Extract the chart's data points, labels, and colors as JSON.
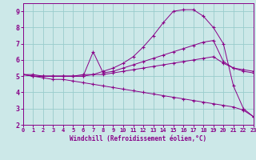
{
  "xlabel": "Windchill (Refroidissement éolien,°C)",
  "xlim": [
    0,
    23
  ],
  "ylim": [
    2,
    9.5
  ],
  "yticks": [
    2,
    3,
    4,
    5,
    6,
    7,
    8,
    9
  ],
  "xticks": [
    0,
    1,
    2,
    3,
    4,
    5,
    6,
    7,
    8,
    9,
    10,
    11,
    12,
    13,
    14,
    15,
    16,
    17,
    18,
    19,
    20,
    21,
    22,
    23
  ],
  "bg_color": "#cce8e8",
  "grid_color": "#99cccc",
  "line_color": "#880088",
  "line1_x": [
    0,
    1,
    2,
    3,
    4,
    5,
    6,
    7,
    8,
    9,
    10,
    11,
    12,
    13,
    14,
    15,
    16,
    17,
    18,
    19,
    20,
    21,
    22,
    23
  ],
  "line1_y": [
    5.1,
    5.1,
    5.0,
    5.0,
    5.0,
    5.0,
    5.1,
    5.1,
    5.3,
    5.5,
    5.8,
    6.2,
    6.8,
    7.5,
    8.3,
    9.0,
    9.1,
    9.1,
    8.7,
    8.0,
    7.0,
    4.4,
    3.0,
    2.5
  ],
  "line2_x": [
    0,
    1,
    2,
    3,
    4,
    5,
    6,
    7,
    8,
    9,
    10,
    11,
    12,
    13,
    14,
    15,
    16,
    17,
    18,
    19,
    20,
    21,
    22,
    23
  ],
  "line2_y": [
    5.1,
    5.0,
    5.0,
    5.0,
    5.0,
    5.0,
    5.0,
    6.5,
    5.2,
    5.3,
    5.5,
    5.7,
    5.9,
    6.1,
    6.3,
    6.5,
    6.7,
    6.9,
    7.1,
    7.2,
    5.9,
    5.5,
    5.4,
    5.3
  ],
  "line3_x": [
    0,
    1,
    2,
    3,
    4,
    5,
    6,
    7,
    8,
    9,
    10,
    11,
    12,
    13,
    14,
    15,
    16,
    17,
    18,
    19,
    20,
    21,
    22,
    23
  ],
  "line3_y": [
    5.1,
    5.0,
    5.0,
    5.0,
    5.0,
    5.0,
    5.0,
    5.1,
    5.1,
    5.2,
    5.3,
    5.4,
    5.5,
    5.6,
    5.7,
    5.8,
    5.9,
    6.0,
    6.1,
    6.2,
    5.8,
    5.5,
    5.3,
    5.2
  ],
  "line4_x": [
    0,
    1,
    2,
    3,
    4,
    5,
    6,
    7,
    8,
    9,
    10,
    11,
    12,
    13,
    14,
    15,
    16,
    17,
    18,
    19,
    20,
    21,
    22,
    23
  ],
  "line4_y": [
    5.1,
    5.0,
    4.9,
    4.8,
    4.8,
    4.7,
    4.6,
    4.5,
    4.4,
    4.3,
    4.2,
    4.1,
    4.0,
    3.9,
    3.8,
    3.7,
    3.6,
    3.5,
    3.4,
    3.3,
    3.2,
    3.1,
    2.9,
    2.5
  ]
}
